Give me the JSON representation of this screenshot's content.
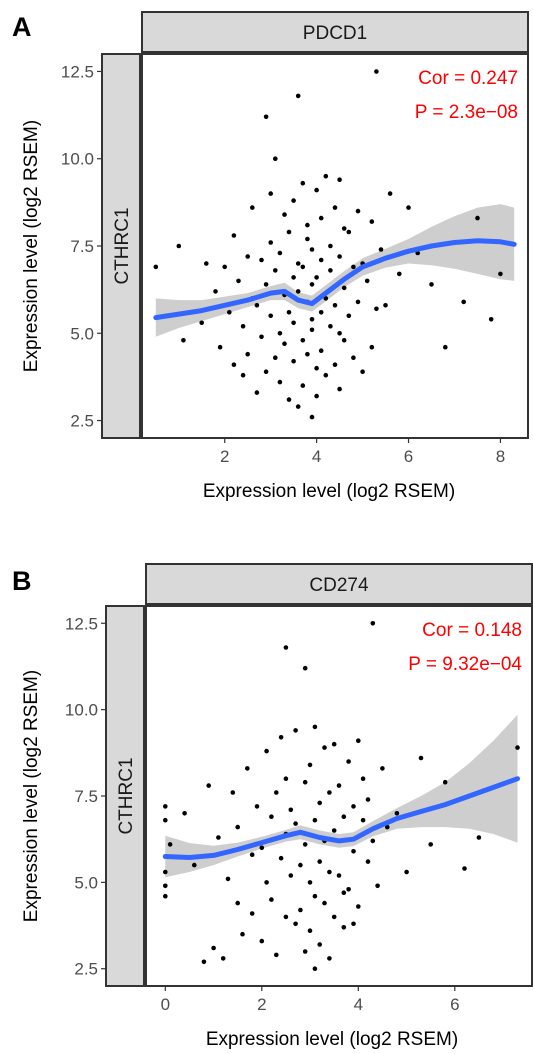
{
  "chart_data": [
    {
      "type": "scatter",
      "panel_label": "A",
      "column_strip": "PDCD1",
      "row_strip": "CTHRC1",
      "xlabel": "Expression level (log2 RSEM)",
      "ylabel": "Expression level (log2 RSEM)",
      "xlim": [
        0.2,
        8.6
      ],
      "ylim": [
        2.0,
        13.0
      ],
      "xticks": [
        2,
        4,
        6,
        8
      ],
      "yticks": [
        2.5,
        5.0,
        7.5,
        10.0,
        12.5
      ],
      "xtick_labels": [
        "2",
        "4",
        "6",
        "8"
      ],
      "ytick_labels": [
        "2.5",
        "5.0",
        "7.5",
        "10.0",
        "12.5"
      ],
      "annotation": {
        "cor": "Cor = 0.247",
        "p": "P = 2.3e−08"
      },
      "fit": {
        "x": [
          0.5,
          1.0,
          1.5,
          2.0,
          2.5,
          3.0,
          3.3,
          3.6,
          3.9,
          4.2,
          4.6,
          5.0,
          5.5,
          6.0,
          6.5,
          7.0,
          7.5,
          8.0,
          8.3
        ],
        "y": [
          5.45,
          5.55,
          5.65,
          5.8,
          5.95,
          6.15,
          6.2,
          5.95,
          5.85,
          6.15,
          6.55,
          6.9,
          7.15,
          7.35,
          7.5,
          7.6,
          7.65,
          7.62,
          7.55
        ],
        "lower": [
          4.9,
          5.15,
          5.35,
          5.55,
          5.75,
          5.95,
          5.95,
          5.72,
          5.62,
          5.92,
          6.32,
          6.65,
          6.88,
          7.0,
          6.95,
          6.85,
          6.7,
          6.55,
          6.5
        ],
        "upper": [
          6.0,
          5.95,
          5.95,
          6.05,
          6.15,
          6.35,
          6.45,
          6.18,
          6.08,
          6.38,
          6.78,
          7.15,
          7.42,
          7.7,
          8.05,
          8.35,
          8.6,
          8.7,
          8.6
        ]
      },
      "points": {
        "x": [
          0.5,
          1.0,
          1.1,
          1.5,
          1.6,
          1.8,
          1.9,
          2.0,
          2.1,
          2.2,
          2.2,
          2.3,
          2.4,
          2.4,
          2.5,
          2.5,
          2.6,
          2.6,
          2.7,
          2.7,
          2.8,
          2.8,
          2.9,
          2.9,
          3.0,
          3.0,
          3.0,
          3.1,
          3.1,
          3.1,
          3.2,
          3.2,
          3.2,
          3.3,
          3.3,
          3.3,
          3.4,
          3.4,
          3.4,
          3.5,
          3.5,
          3.5,
          3.5,
          3.6,
          3.6,
          3.6,
          3.7,
          3.7,
          3.7,
          3.7,
          3.8,
          3.8,
          3.8,
          3.8,
          3.9,
          3.9,
          3.9,
          3.9,
          4.0,
          4.0,
          4.0,
          4.0,
          4.1,
          4.1,
          4.1,
          4.1,
          4.2,
          4.2,
          4.2,
          4.3,
          4.3,
          4.3,
          4.4,
          4.4,
          4.4,
          4.5,
          4.5,
          4.5,
          4.6,
          4.6,
          4.6,
          4.7,
          4.7,
          4.8,
          4.8,
          4.9,
          4.9,
          5.0,
          5.0,
          5.1,
          5.2,
          5.2,
          5.3,
          5.4,
          5.5,
          5.6,
          5.8,
          6.0,
          6.2,
          6.5,
          6.8,
          7.2,
          7.5,
          7.8,
          8.0,
          3.6,
          5.3,
          2.9,
          4.5,
          3.9
        ],
        "y": [
          6.9,
          7.5,
          4.8,
          5.3,
          7.0,
          6.2,
          4.6,
          6.9,
          5.6,
          4.1,
          7.8,
          6.5,
          3.8,
          5.2,
          7.2,
          4.4,
          6.0,
          8.6,
          3.3,
          5.8,
          7.1,
          4.9,
          6.4,
          3.9,
          9.0,
          5.5,
          7.6,
          4.3,
          6.8,
          10.0,
          5.0,
          7.3,
          3.6,
          6.1,
          8.4,
          4.7,
          5.6,
          7.9,
          3.1,
          6.6,
          4.2,
          8.8,
          5.3,
          7.0,
          2.9,
          6.2,
          9.3,
          4.8,
          6.9,
          3.5,
          5.9,
          7.7,
          4.4,
          8.1,
          6.4,
          2.6,
          5.1,
          7.4,
          9.1,
          4.0,
          6.6,
          3.2,
          8.3,
          5.6,
          7.1,
          4.5,
          6.0,
          9.5,
          3.8,
          7.5,
          5.2,
          6.8,
          4.1,
          8.6,
          5.8,
          7.2,
          3.4,
          9.4,
          6.3,
          4.8,
          8.0,
          5.5,
          7.9,
          6.9,
          4.3,
          8.5,
          5.9,
          7.0,
          3.9,
          6.5,
          8.2,
          4.6,
          12.5,
          7.4,
          5.8,
          9.0,
          6.7,
          8.6,
          7.3,
          6.4,
          4.6,
          5.9,
          8.3,
          5.4,
          6.7,
          11.8,
          5.7,
          11.2,
          5.0,
          5.4
        ]
      }
    },
    {
      "type": "scatter",
      "panel_label": "B",
      "column_strip": "CD274",
      "row_strip": "CTHRC1",
      "xlabel": "Expression level (log2 RSEM)",
      "ylabel": "Expression level (log2 RSEM)",
      "xlim": [
        -0.4,
        7.6
      ],
      "ylim": [
        2.0,
        13.0
      ],
      "xticks": [
        0,
        2,
        4,
        6
      ],
      "yticks": [
        2.5,
        5.0,
        7.5,
        10.0,
        12.5
      ],
      "xtick_labels": [
        "0",
        "2",
        "4",
        "6"
      ],
      "ytick_labels": [
        "2.5",
        "5.0",
        "7.5",
        "10.0",
        "12.5"
      ],
      "annotation": {
        "cor": "Cor = 0.148",
        "p": "P = 9.32e−04"
      },
      "fit": {
        "x": [
          0.0,
          0.5,
          1.0,
          1.5,
          2.0,
          2.5,
          2.8,
          3.2,
          3.6,
          3.9,
          4.3,
          4.8,
          5.3,
          5.8,
          6.3,
          6.8,
          7.3
        ],
        "y": [
          5.75,
          5.72,
          5.78,
          5.95,
          6.15,
          6.35,
          6.45,
          6.3,
          6.2,
          6.25,
          6.55,
          6.85,
          7.05,
          7.25,
          7.5,
          7.75,
          8.0
        ],
        "lower": [
          5.15,
          5.3,
          5.5,
          5.75,
          5.98,
          6.18,
          6.25,
          6.1,
          6.0,
          6.05,
          6.33,
          6.55,
          6.6,
          6.6,
          6.55,
          6.4,
          6.15
        ],
        "upper": [
          6.35,
          6.14,
          6.06,
          6.15,
          6.32,
          6.52,
          6.65,
          6.5,
          6.4,
          6.45,
          6.77,
          7.15,
          7.5,
          7.9,
          8.45,
          9.1,
          9.85
        ]
      },
      "points": {
        "x": [
          0.0,
          0.0,
          0.0,
          0.0,
          0.0,
          0.1,
          0.4,
          0.6,
          0.8,
          0.9,
          1.0,
          1.1,
          1.2,
          1.3,
          1.4,
          1.5,
          1.5,
          1.6,
          1.7,
          1.8,
          1.8,
          1.9,
          2.0,
          2.0,
          2.1,
          2.1,
          2.2,
          2.2,
          2.3,
          2.3,
          2.4,
          2.4,
          2.5,
          2.5,
          2.5,
          2.6,
          2.6,
          2.7,
          2.7,
          2.7,
          2.8,
          2.8,
          2.9,
          2.9,
          2.9,
          3.0,
          3.0,
          3.0,
          3.1,
          3.1,
          3.1,
          3.2,
          3.2,
          3.2,
          3.3,
          3.3,
          3.3,
          3.4,
          3.4,
          3.4,
          3.5,
          3.5,
          3.5,
          3.6,
          3.6,
          3.7,
          3.7,
          3.8,
          3.8,
          3.9,
          3.9,
          4.0,
          4.0,
          4.1,
          4.1,
          4.2,
          4.2,
          4.3,
          4.4,
          4.5,
          4.6,
          4.8,
          5.0,
          5.3,
          5.5,
          5.8,
          6.2,
          6.5,
          7.3,
          2.5,
          2.9,
          3.9,
          3.1,
          4.3,
          3.7
        ],
        "y": [
          7.2,
          4.6,
          5.3,
          6.8,
          4.9,
          6.1,
          7.0,
          5.5,
          2.7,
          7.8,
          3.1,
          6.3,
          2.8,
          5.1,
          7.6,
          4.4,
          6.6,
          3.5,
          8.3,
          5.8,
          4.1,
          7.2,
          6.0,
          3.3,
          8.8,
          5.0,
          6.9,
          4.5,
          7.6,
          2.9,
          5.7,
          9.2,
          4.0,
          6.4,
          8.0,
          5.2,
          7.1,
          3.8,
          6.7,
          9.4,
          5.5,
          4.2,
          7.9,
          3.0,
          6.1,
          8.4,
          5.0,
          3.6,
          6.8,
          9.5,
          4.6,
          7.3,
          5.6,
          3.2,
          8.9,
          6.2,
          4.4,
          7.6,
          5.3,
          2.8,
          9.0,
          6.5,
          4.0,
          7.8,
          5.2,
          6.9,
          3.7,
          8.5,
          4.8,
          7.2,
          5.9,
          9.1,
          4.3,
          6.8,
          8.0,
          5.6,
          7.4,
          6.2,
          4.9,
          8.3,
          6.6,
          7.0,
          5.3,
          8.6,
          6.1,
          7.9,
          5.4,
          6.3,
          8.9,
          11.8,
          11.2,
          3.8,
          2.5,
          12.5,
          4.7
        ]
      }
    }
  ],
  "styles": {
    "point_color": "#000000",
    "fit_color": "#3366ff",
    "band_color": "#bdbdbd",
    "stat_color": "#ff0000",
    "strip_fill": "#d9d9d9"
  }
}
